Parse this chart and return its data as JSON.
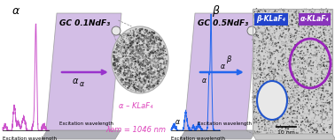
{
  "fig_width": 3.78,
  "fig_height": 1.59,
  "dpi": 100,
  "bg_color": "#ffffff",
  "panel1": {
    "glass_color": "#c8aee0",
    "glass_alpha": 0.8,
    "bottom_color": "#b0b0b8",
    "spectrum_color": "#cc55cc",
    "arrow_color": "#9933cc",
    "nc_label": "α – KLaF₄",
    "nc_label_color": "#dd44bb",
    "em_label": "λₑₘ = 1046 nm",
    "em_label_color": "#dd44bb"
  },
  "panel2": {
    "glass_color": "#c8aee0",
    "glass_alpha": 0.8,
    "bottom_color": "#b0b0b8",
    "spectrum_color": "#2266ee",
    "arrow_color": "#2266ee",
    "beta_box_color": "#2244cc",
    "alpha_box_color": "#8833bb",
    "beta_circle_color": "#2255cc",
    "alpha_circle_color": "#9922bb",
    "scale_label": "10 nm",
    "beta_box_label": "β-KLaF₄",
    "alpha_box_label": "α-KLaF₄"
  }
}
